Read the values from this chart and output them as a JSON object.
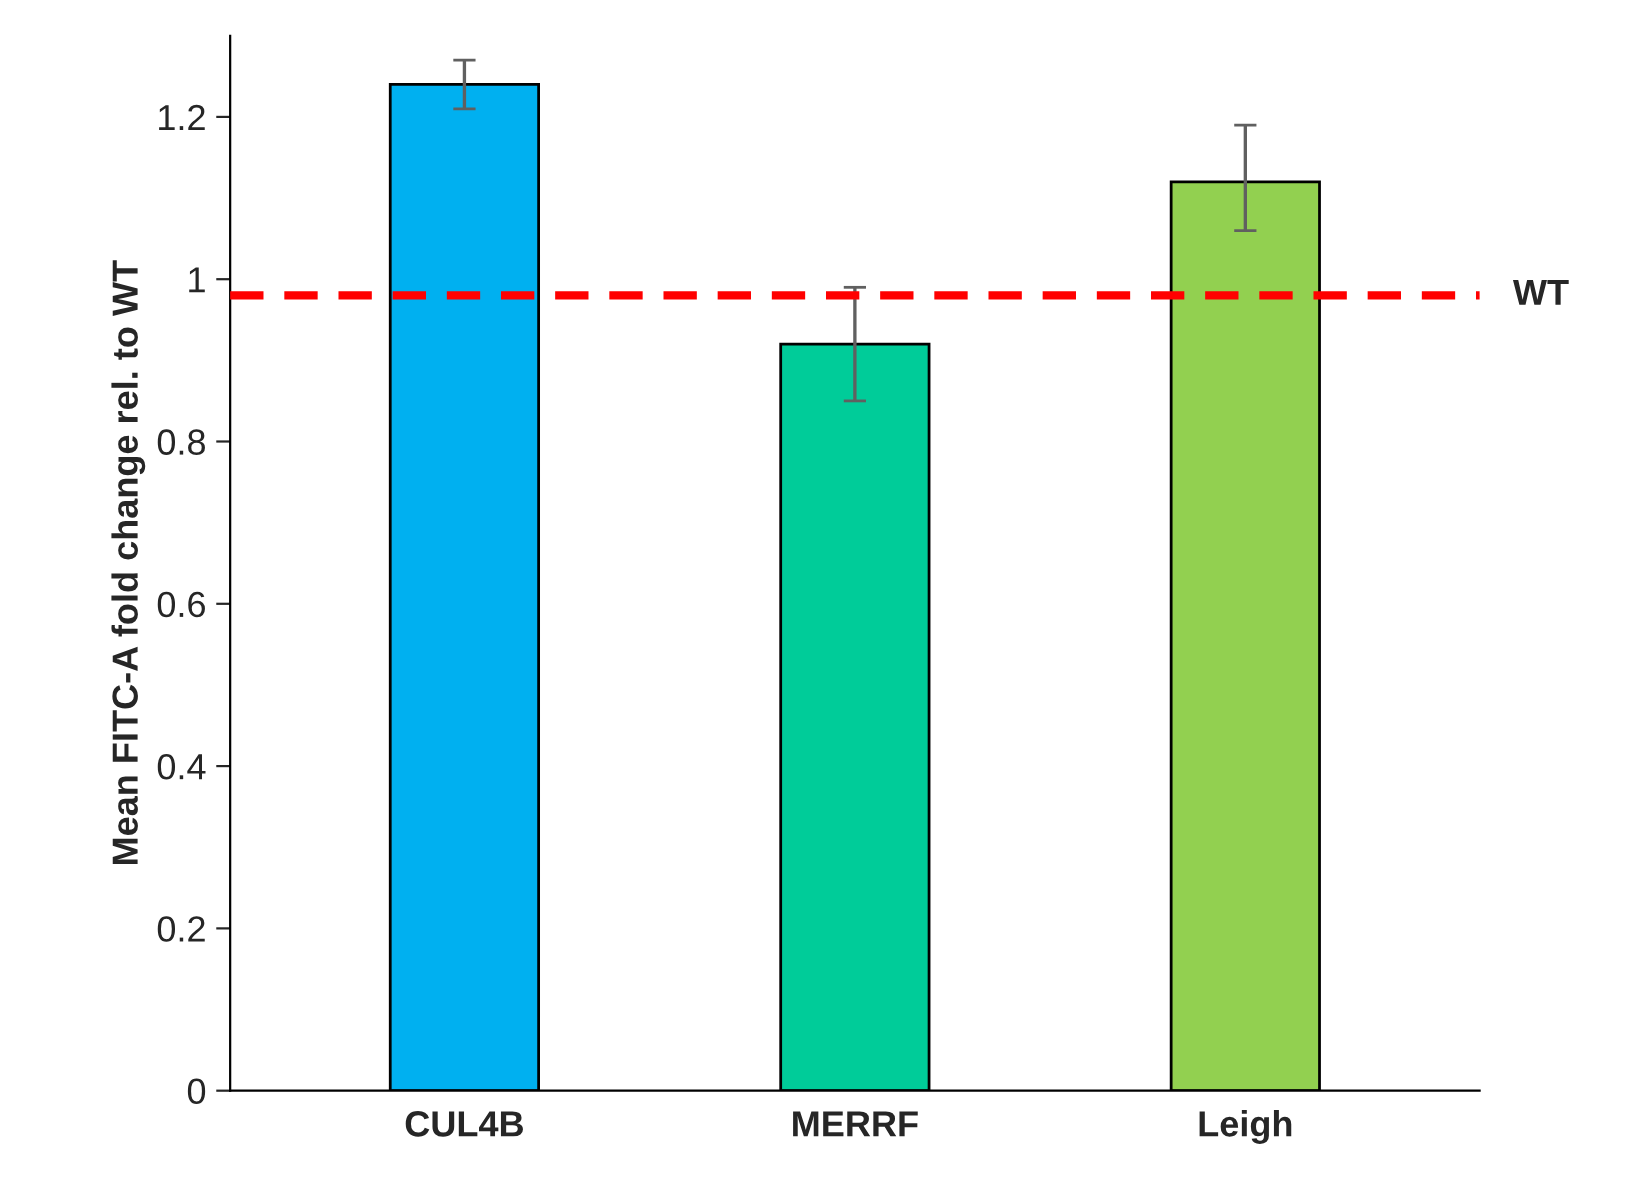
{
  "chart_data": {
    "type": "bar",
    "ylabel": "Mean FITC-A fold change rel. to WT",
    "categories": [
      "CUL4B",
      "MERRF",
      "Leigh"
    ],
    "values": [
      1.24,
      0.92,
      1.12
    ],
    "colors": [
      "#00b0f0",
      "#00cc99",
      "#92d050"
    ],
    "errors": [
      [
        1.21,
        1.27
      ],
      [
        0.85,
        0.99
      ],
      [
        1.06,
        1.19
      ]
    ],
    "ylim": [
      0,
      1.3
    ],
    "yticks": [
      0,
      0.2,
      0.4,
      0.6,
      0.8,
      1,
      1.2
    ],
    "ref_lines": [
      {
        "axis": "y",
        "value": 0.98,
        "label": "WT",
        "color": "#ff0000",
        "line_style": "dashed"
      }
    ],
    "grid": false,
    "legend": false
  }
}
